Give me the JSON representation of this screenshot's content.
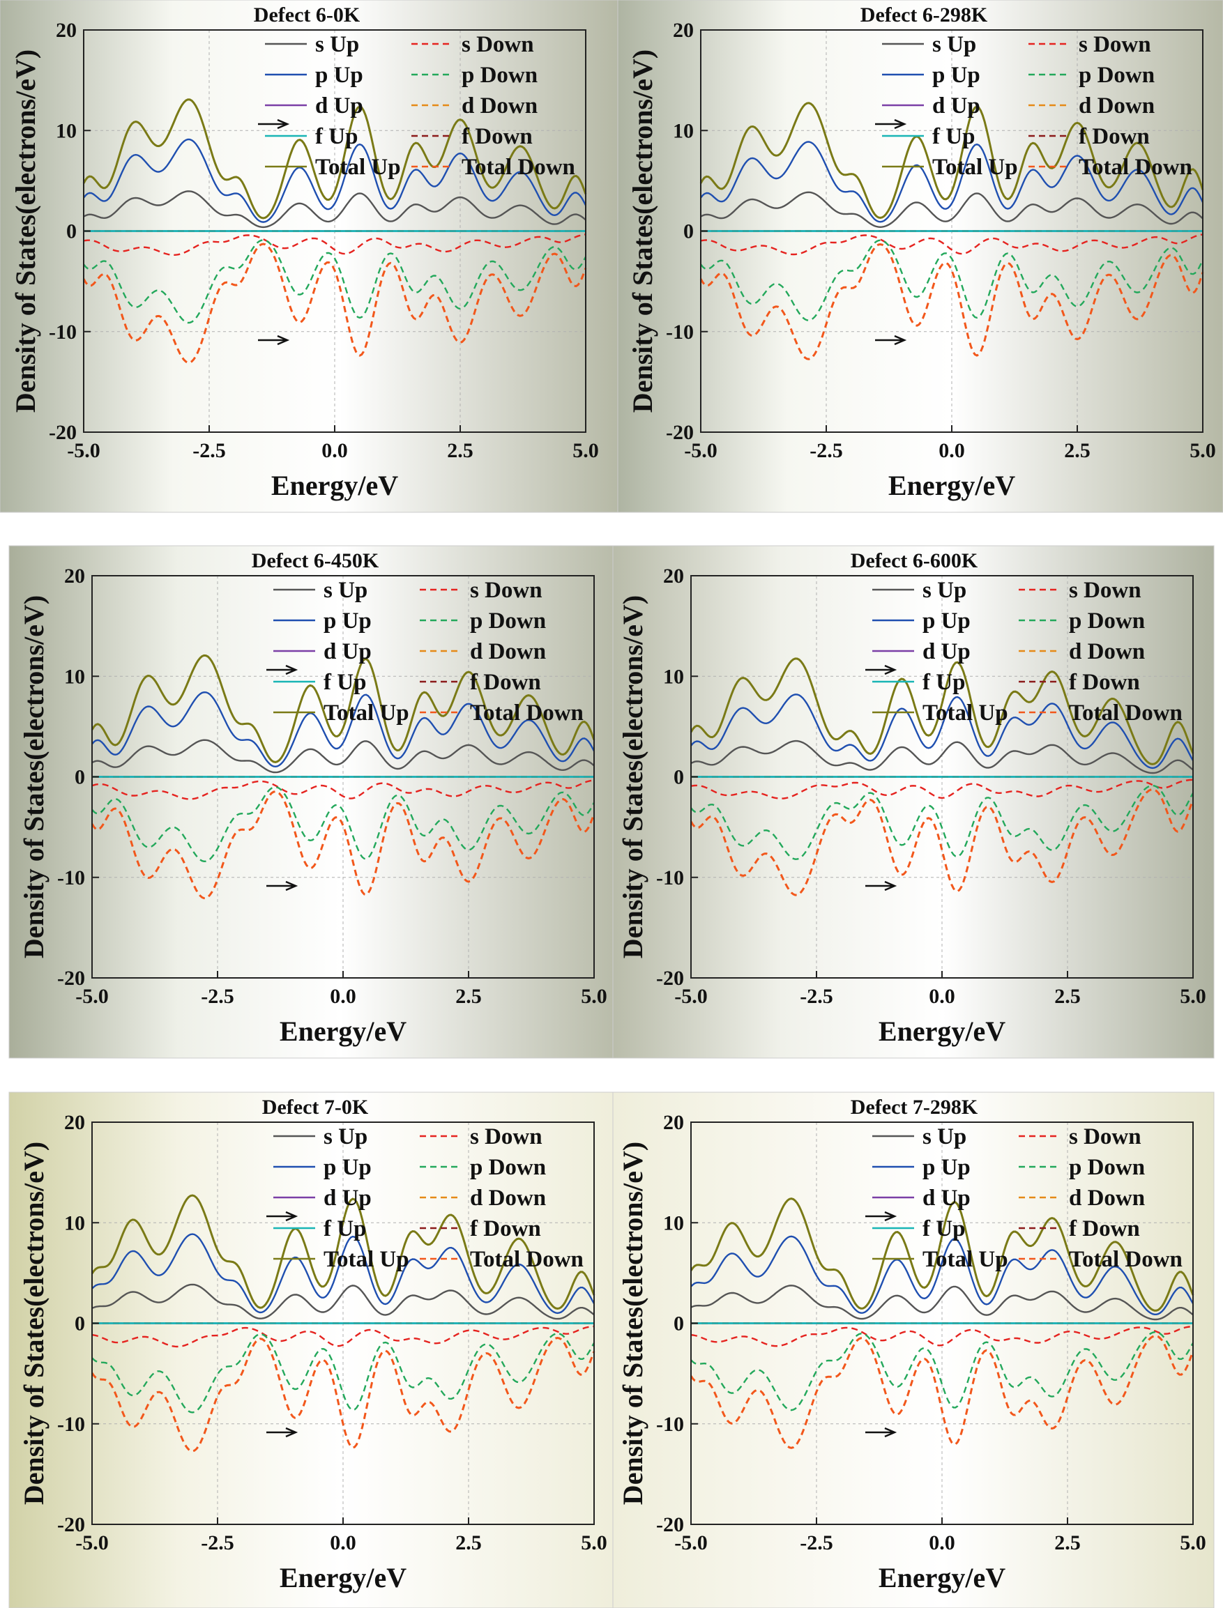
{
  "chart_data": [
    {
      "type": "line",
      "title": "Defect 6-0K",
      "xlabel": "Energy/eV",
      "ylabel": "Density of States(electrons/eV)",
      "xlim": [
        -5.0,
        5.0
      ],
      "ylim": [
        -20,
        20
      ],
      "xticks": [
        "-5.0",
        "-2.5",
        "0.0",
        "2.5",
        "5.0"
      ],
      "yticks": [
        "-20",
        "-10",
        "0",
        "10",
        "20"
      ],
      "grid": true,
      "legend_position": "top-right",
      "bg": [
        "#aeb4a2",
        "#f6f7f1",
        "#ffffff",
        "#b6b9a6"
      ],
      "peaks": [
        [
          -4.9,
          1.4,
          0.5
        ],
        [
          -4.0,
          3.0,
          0.8
        ],
        [
          -2.9,
          3.8,
          1.0
        ],
        [
          -1.9,
          1.2,
          0.5
        ],
        [
          -0.7,
          2.6,
          0.7
        ],
        [
          0.5,
          3.6,
          0.7
        ],
        [
          1.6,
          2.4,
          0.6
        ],
        [
          2.5,
          3.2,
          0.8
        ],
        [
          3.7,
          2.4,
          0.8
        ],
        [
          4.8,
          1.5,
          0.5
        ]
      ]
    },
    {
      "type": "line",
      "title": "Defect 6-298K",
      "xlabel": "Energy/eV",
      "ylabel": "Density of States(electrons/eV)",
      "xlim": [
        -5.0,
        5.0
      ],
      "ylim": [
        -20,
        20
      ],
      "xticks": [
        "-5.0",
        "-2.5",
        "0.0",
        "2.5",
        "5.0"
      ],
      "yticks": [
        "-20",
        "-10",
        "0",
        "10",
        "20"
      ],
      "grid": true,
      "legend_position": "top-right",
      "bg": [
        "#aeb4a2",
        "#f6f7f1",
        "#ffffff",
        "#b6b9a6"
      ],
      "peaks": [
        [
          -4.9,
          1.4,
          0.5
        ],
        [
          -4.0,
          2.9,
          0.8
        ],
        [
          -2.85,
          3.7,
          1.0
        ],
        [
          -1.9,
          1.2,
          0.5
        ],
        [
          -0.7,
          2.7,
          0.7
        ],
        [
          0.5,
          3.6,
          0.7
        ],
        [
          1.6,
          2.4,
          0.6
        ],
        [
          2.5,
          3.1,
          0.8
        ],
        [
          3.7,
          2.5,
          0.8
        ],
        [
          4.8,
          1.7,
          0.5
        ]
      ]
    },
    {
      "type": "line",
      "title": "Defect 6-450K",
      "xlabel": "Energy/eV",
      "ylabel": "Density of States(electrons/eV)",
      "xlim": [
        -5.0,
        5.0
      ],
      "ylim": [
        -20,
        20
      ],
      "xticks": [
        "-5.0",
        "-2.5",
        "0.0",
        "2.5",
        "5.0"
      ],
      "yticks": [
        "-20",
        "-10",
        "0",
        "10",
        "20"
      ],
      "grid": true,
      "legend_position": "top-right",
      "bg": [
        "#a9ae9a",
        "#eef0e8",
        "#ffffff",
        "#b9bcaa"
      ],
      "peaks": [
        [
          -4.9,
          1.4,
          0.5
        ],
        [
          -3.9,
          2.8,
          0.8
        ],
        [
          -2.75,
          3.5,
          1.0
        ],
        [
          -1.8,
          1.1,
          0.5
        ],
        [
          -0.65,
          2.6,
          0.7
        ],
        [
          0.45,
          3.4,
          0.7
        ],
        [
          1.6,
          2.3,
          0.6
        ],
        [
          2.5,
          3.0,
          0.8
        ],
        [
          3.7,
          2.3,
          0.8
        ],
        [
          4.8,
          1.5,
          0.5
        ]
      ]
    },
    {
      "type": "line",
      "title": "Defect 6-600K",
      "xlabel": "Energy/eV",
      "ylabel": "Density of States(electrons/eV)",
      "xlim": [
        -5.0,
        5.0
      ],
      "ylim": [
        -20,
        20
      ],
      "xticks": [
        "-5.0",
        "-2.5",
        "0.0",
        "2.5",
        "5.0"
      ],
      "yticks": [
        "-20",
        "-10",
        "0",
        "10",
        "20"
      ],
      "grid": true,
      "legend_position": "top-right",
      "bg": [
        "#b9bcaa",
        "#f0f1ea",
        "#ffffff",
        "#aeb2a0"
      ],
      "peaks": [
        [
          -4.9,
          1.3,
          0.5
        ],
        [
          -4.0,
          2.7,
          0.8
        ],
        [
          -2.9,
          3.4,
          1.0
        ],
        [
          -1.8,
          1.1,
          0.5
        ],
        [
          -0.8,
          2.8,
          0.7
        ],
        [
          0.3,
          3.3,
          0.7
        ],
        [
          1.4,
          2.2,
          0.6
        ],
        [
          2.2,
          3.0,
          0.8
        ],
        [
          3.4,
          2.2,
          0.8
        ],
        [
          4.7,
          1.5,
          0.5
        ]
      ]
    },
    {
      "type": "line",
      "title": "Defect 7-0K",
      "xlabel": "Energy/eV",
      "ylabel": "Density of States(electrons/eV)",
      "xlim": [
        -5.0,
        5.0
      ],
      "ylim": [
        -20,
        20
      ],
      "xticks": [
        "-5.0",
        "-2.5",
        "0.0",
        "2.5",
        "5.0"
      ],
      "yticks": [
        "-20",
        "-10",
        "0",
        "10",
        "20"
      ],
      "grid": true,
      "legend_position": "top-right",
      "bg": [
        "#d2d2a8",
        "#f4f3e4",
        "#ffffff",
        "#efeedb"
      ],
      "peaks": [
        [
          -4.95,
          1.2,
          0.5
        ],
        [
          -4.2,
          2.9,
          0.8
        ],
        [
          -3.0,
          3.7,
          1.0
        ],
        [
          -2.1,
          1.2,
          0.5
        ],
        [
          -0.95,
          2.7,
          0.7
        ],
        [
          0.2,
          3.6,
          0.7
        ],
        [
          1.35,
          2.4,
          0.6
        ],
        [
          2.15,
          3.1,
          0.8
        ],
        [
          3.5,
          2.4,
          0.8
        ],
        [
          4.75,
          1.4,
          0.5
        ]
      ]
    },
    {
      "type": "line",
      "title": "Defect 7-298K",
      "xlabel": "Energy/eV",
      "ylabel": "Density of States(electrons/eV)",
      "xlim": [
        -5.0,
        5.0
      ],
      "ylim": [
        -20,
        20
      ],
      "xticks": [
        "-5.0",
        "-2.5",
        "0.0",
        "2.5",
        "5.0"
      ],
      "yticks": [
        "-20",
        "-10",
        "0",
        "10",
        "20"
      ],
      "grid": true,
      "legend_position": "top-right",
      "bg": [
        "#efeedb",
        "#f8f7ee",
        "#ffffff",
        "#e6e5cc"
      ],
      "peaks": [
        [
          -4.95,
          1.3,
          0.5
        ],
        [
          -4.2,
          2.8,
          0.8
        ],
        [
          -3.0,
          3.6,
          1.0
        ],
        [
          -2.05,
          1.1,
          0.5
        ],
        [
          -0.9,
          2.6,
          0.7
        ],
        [
          0.25,
          3.5,
          0.7
        ],
        [
          1.4,
          2.4,
          0.6
        ],
        [
          2.2,
          3.0,
          0.8
        ],
        [
          3.45,
          2.3,
          0.8
        ],
        [
          4.75,
          1.4,
          0.5
        ]
      ]
    }
  ],
  "series": [
    {
      "key": "s_up",
      "name": "s Up",
      "color": "#555555",
      "dash": false,
      "scale": 1.0
    },
    {
      "key": "p_up",
      "name": "p Up",
      "color": "#1f4fb0",
      "dash": false,
      "scale": 2.3
    },
    {
      "key": "d_up",
      "name": "d Up",
      "color": "#7b3fa6",
      "dash": false,
      "scale": 0.0
    },
    {
      "key": "f_up",
      "name": "f Up",
      "color": "#19b5b5",
      "dash": false,
      "scale": 0.0
    },
    {
      "key": "total_up",
      "name": "Total Up",
      "color": "#7a7a16",
      "dash": false,
      "scale": 3.3
    },
    {
      "key": "s_down",
      "name": "s Down",
      "color": "#e5231f",
      "dash": true,
      "scale": -1.0
    },
    {
      "key": "p_down",
      "name": "p Down",
      "color": "#23a85b",
      "dash": true,
      "scale": -2.3
    },
    {
      "key": "d_down",
      "name": "d Down",
      "color": "#e58a17",
      "dash": true,
      "scale": 0.0
    },
    {
      "key": "f_down",
      "name": "f Down",
      "color": "#8b1a1a",
      "dash": true,
      "scale": 0.0
    },
    {
      "key": "total_down",
      "name": "Total Down",
      "color": "#f2571b",
      "dash": true,
      "scale": -3.3
    }
  ]
}
